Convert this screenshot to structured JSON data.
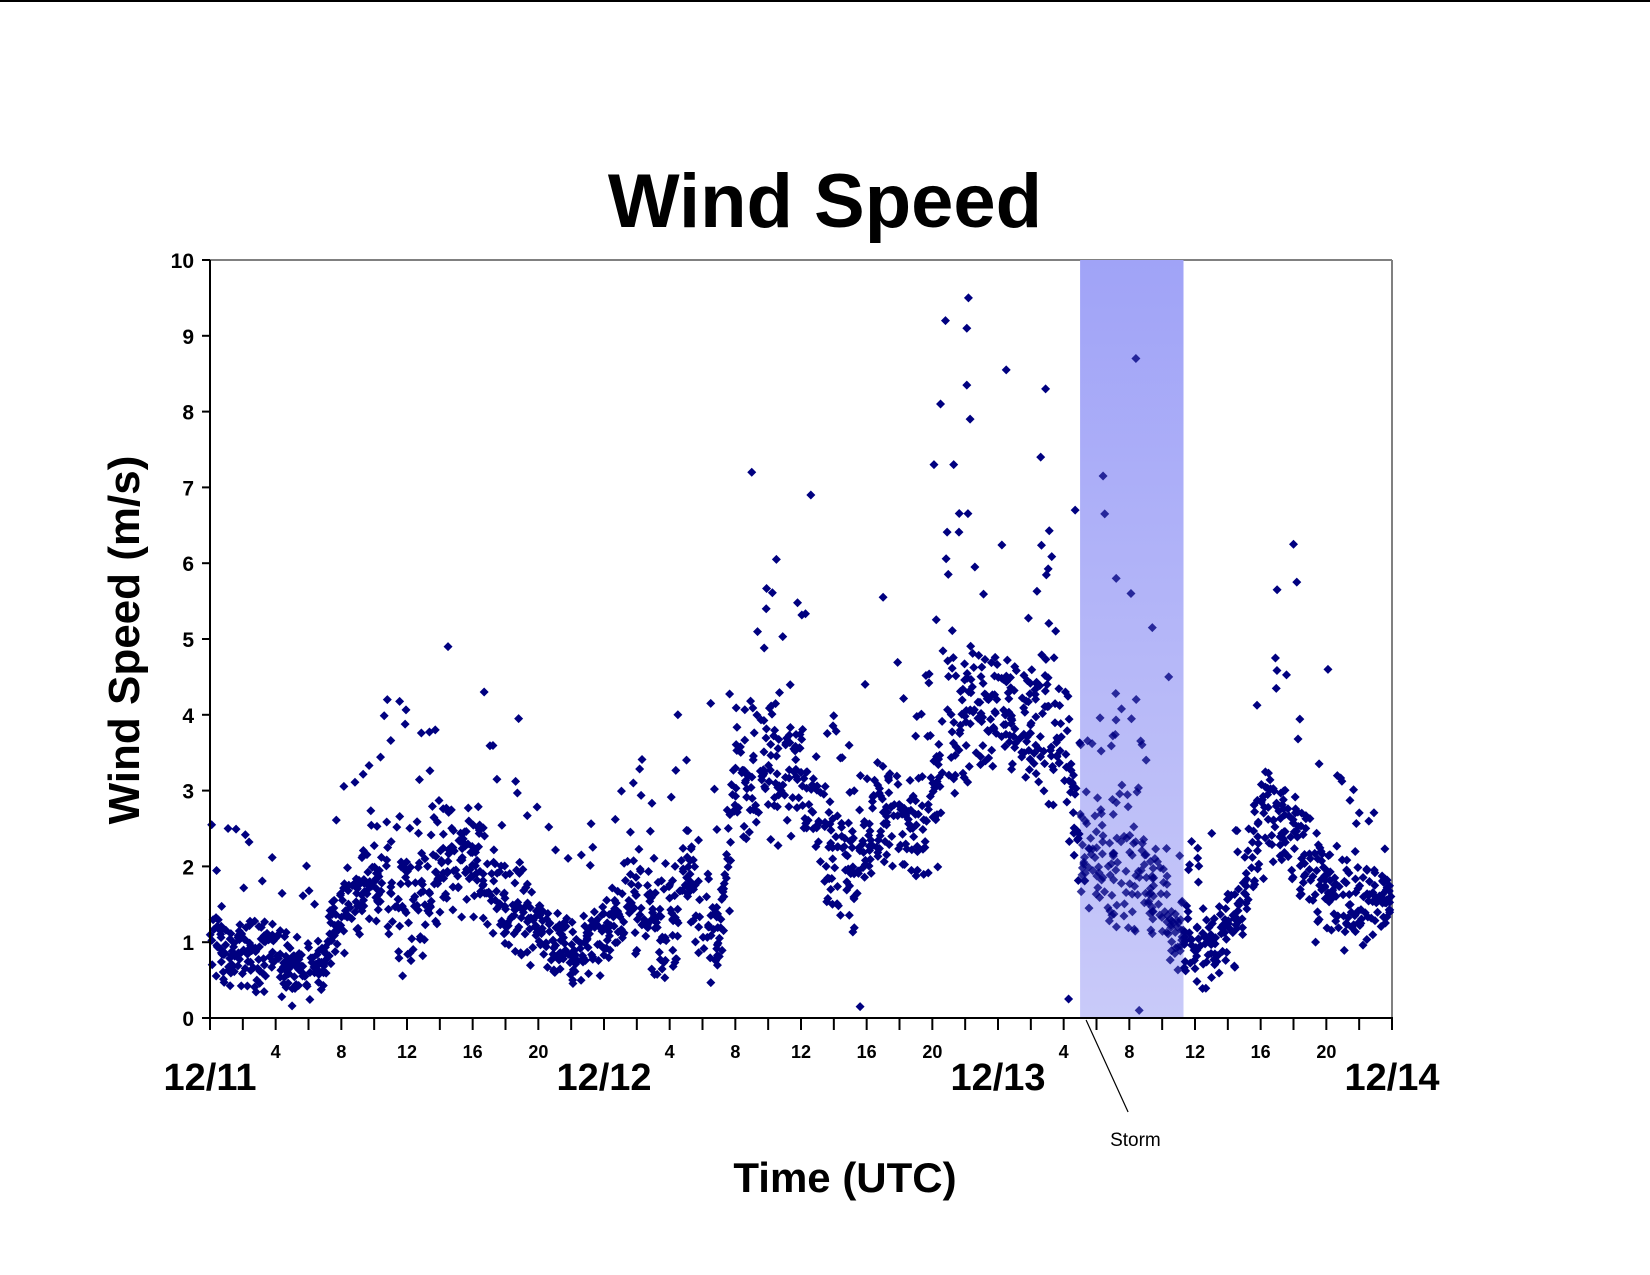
{
  "chart_data": {
    "type": "scatter",
    "title": "Wind Speed",
    "xlabel": "Time (UTC)",
    "ylabel": "Wind Speed (m/s)",
    "ylim": [
      0,
      10
    ],
    "yticks": [
      0,
      1,
      2,
      3,
      4,
      5,
      6,
      7,
      8,
      9,
      10
    ],
    "xlim_hours": [
      0,
      72
    ],
    "date_labels": [
      {
        "label": "12/11",
        "hour": 0
      },
      {
        "label": "12/12",
        "hour": 24
      },
      {
        "label": "12/13",
        "hour": 48
      },
      {
        "label": "12/14",
        "hour": 72
      }
    ],
    "hour_tick_labels": [
      "4",
      "8",
      "12",
      "16",
      "20"
    ],
    "marker": {
      "shape": "diamond",
      "color": "#000080",
      "size": 9
    },
    "grid": false,
    "legend": null,
    "annotation": {
      "label": "Storm",
      "start_hour": 53.0,
      "end_hour": 59.3,
      "color_top": "#a0a3f7",
      "color_bottom": "#c9caf9"
    },
    "series": [
      {
        "name": "Wind Speed",
        "hourly_profile_note": "approximate envelope read from scatter density: [hour, typical_low, typical_high] m/s",
        "hourly_profile": [
          [
            0,
            0.2,
            1.8
          ],
          [
            1,
            0.2,
            1.6
          ],
          [
            2,
            0.2,
            1.6
          ],
          [
            3,
            0.1,
            1.5
          ],
          [
            4,
            0.1,
            1.6
          ],
          [
            5,
            0.1,
            1.2
          ],
          [
            6,
            0.0,
            1.2
          ],
          [
            7,
            0.1,
            1.5
          ],
          [
            8,
            0.8,
            2.4
          ],
          [
            9,
            0.7,
            2.4
          ],
          [
            10,
            0.8,
            2.8
          ],
          [
            11,
            0.1,
            3.4
          ],
          [
            12,
            0.1,
            3.2
          ],
          [
            13,
            0.3,
            3.1
          ],
          [
            14,
            0.6,
            3.4
          ],
          [
            15,
            0.8,
            3.3
          ],
          [
            16,
            0.7,
            3.2
          ],
          [
            17,
            0.6,
            3.0
          ],
          [
            18,
            0.2,
            2.8
          ],
          [
            19,
            0.4,
            2.4
          ],
          [
            20,
            0.5,
            2.0
          ],
          [
            21,
            0.3,
            1.6
          ],
          [
            22,
            0.2,
            1.5
          ],
          [
            23,
            0.1,
            1.7
          ],
          [
            24,
            0.3,
            1.9
          ],
          [
            25,
            0.6,
            2.4
          ],
          [
            26,
            0.7,
            2.8
          ],
          [
            27,
            0.2,
            2.2
          ],
          [
            28,
            0.2,
            2.4
          ],
          [
            29,
            0.7,
            3.0
          ],
          [
            30,
            0.1,
            2.6
          ],
          [
            31,
            0.2,
            2.0
          ],
          [
            32,
            1.6,
            4.5
          ],
          [
            33,
            1.8,
            4.6
          ],
          [
            34,
            2.0,
            4.8
          ],
          [
            35,
            2.0,
            4.8
          ],
          [
            36,
            2.0,
            4.6
          ],
          [
            37,
            1.5,
            4.0
          ],
          [
            38,
            1.0,
            3.2
          ],
          [
            39,
            0.8,
            3.2
          ],
          [
            40,
            1.2,
            3.6
          ],
          [
            41,
            1.6,
            3.8
          ],
          [
            42,
            1.5,
            3.9
          ],
          [
            43,
            1.2,
            3.6
          ],
          [
            44,
            1.5,
            4.5
          ],
          [
            45,
            2.0,
            5.8
          ],
          [
            46,
            2.2,
            6.0
          ],
          [
            47,
            2.5,
            5.6
          ],
          [
            48,
            2.6,
            5.4
          ],
          [
            49,
            2.6,
            5.4
          ],
          [
            50,
            2.4,
            5.2
          ],
          [
            51,
            2.4,
            5.6
          ],
          [
            52,
            2.4,
            5.4
          ],
          [
            53,
            0.8,
            3.2
          ],
          [
            54,
            0.6,
            3.4
          ],
          [
            55,
            0.6,
            3.6
          ],
          [
            56,
            0.5,
            3.8
          ],
          [
            57,
            0.4,
            3.2
          ],
          [
            58,
            0.4,
            2.6
          ],
          [
            59,
            0.3,
            2.0
          ],
          [
            60,
            0.3,
            1.6
          ],
          [
            61,
            0.3,
            1.6
          ],
          [
            62,
            0.3,
            2.0
          ],
          [
            63,
            0.6,
            2.6
          ],
          [
            64,
            1.4,
            3.8
          ],
          [
            65,
            1.6,
            3.8
          ],
          [
            66,
            1.4,
            3.6
          ],
          [
            67,
            1.0,
            3.2
          ],
          [
            68,
            0.8,
            2.6
          ],
          [
            69,
            0.7,
            2.4
          ],
          [
            70,
            0.6,
            2.4
          ],
          [
            71,
            0.8,
            2.4
          ],
          [
            72,
            1.0,
            2.2
          ]
        ],
        "notable_points": [
          {
            "hour": 14.5,
            "value": 4.9
          },
          {
            "hour": 10.8,
            "value": 4.2
          },
          {
            "hour": 16.7,
            "value": 4.3
          },
          {
            "hour": 18.8,
            "value": 3.95
          },
          {
            "hour": 30.5,
            "value": 4.15
          },
          {
            "hour": 28.5,
            "value": 4.0
          },
          {
            "hour": 33.0,
            "value": 7.2
          },
          {
            "hour": 36.6,
            "value": 6.9
          },
          {
            "hour": 34.5,
            "value": 6.05
          },
          {
            "hour": 41.0,
            "value": 5.55
          },
          {
            "hour": 44.5,
            "value": 8.1
          },
          {
            "hour": 44.8,
            "value": 9.2
          },
          {
            "hour": 46.2,
            "value": 9.5
          },
          {
            "hour": 46.1,
            "value": 9.1
          },
          {
            "hour": 46.1,
            "value": 8.35
          },
          {
            "hour": 46.3,
            "value": 7.9
          },
          {
            "hour": 48.5,
            "value": 8.55
          },
          {
            "hour": 50.9,
            "value": 8.3
          },
          {
            "hour": 50.6,
            "value": 7.4
          },
          {
            "hour": 45.3,
            "value": 7.3
          },
          {
            "hour": 44.1,
            "value": 7.3
          },
          {
            "hour": 52.7,
            "value": 6.7
          },
          {
            "hour": 56.4,
            "value": 8.7
          },
          {
            "hour": 54.4,
            "value": 7.15
          },
          {
            "hour": 54.5,
            "value": 6.65
          },
          {
            "hour": 55.2,
            "value": 5.8
          },
          {
            "hour": 56.1,
            "value": 5.6
          },
          {
            "hour": 57.4,
            "value": 5.15
          },
          {
            "hour": 58.4,
            "value": 4.5
          },
          {
            "hour": 65.0,
            "value": 5.65
          },
          {
            "hour": 66.0,
            "value": 6.25
          },
          {
            "hour": 66.2,
            "value": 5.75
          },
          {
            "hour": 68.1,
            "value": 4.6
          },
          {
            "hour": 64.9,
            "value": 4.75
          },
          {
            "hour": 1.1,
            "value": 2.5
          },
          {
            "hour": 0.1,
            "value": 2.55
          },
          {
            "hour": 56.6,
            "value": 0.1
          },
          {
            "hour": 52.3,
            "value": 0.25
          },
          {
            "hour": 39.6,
            "value": 0.15
          }
        ]
      }
    ]
  }
}
